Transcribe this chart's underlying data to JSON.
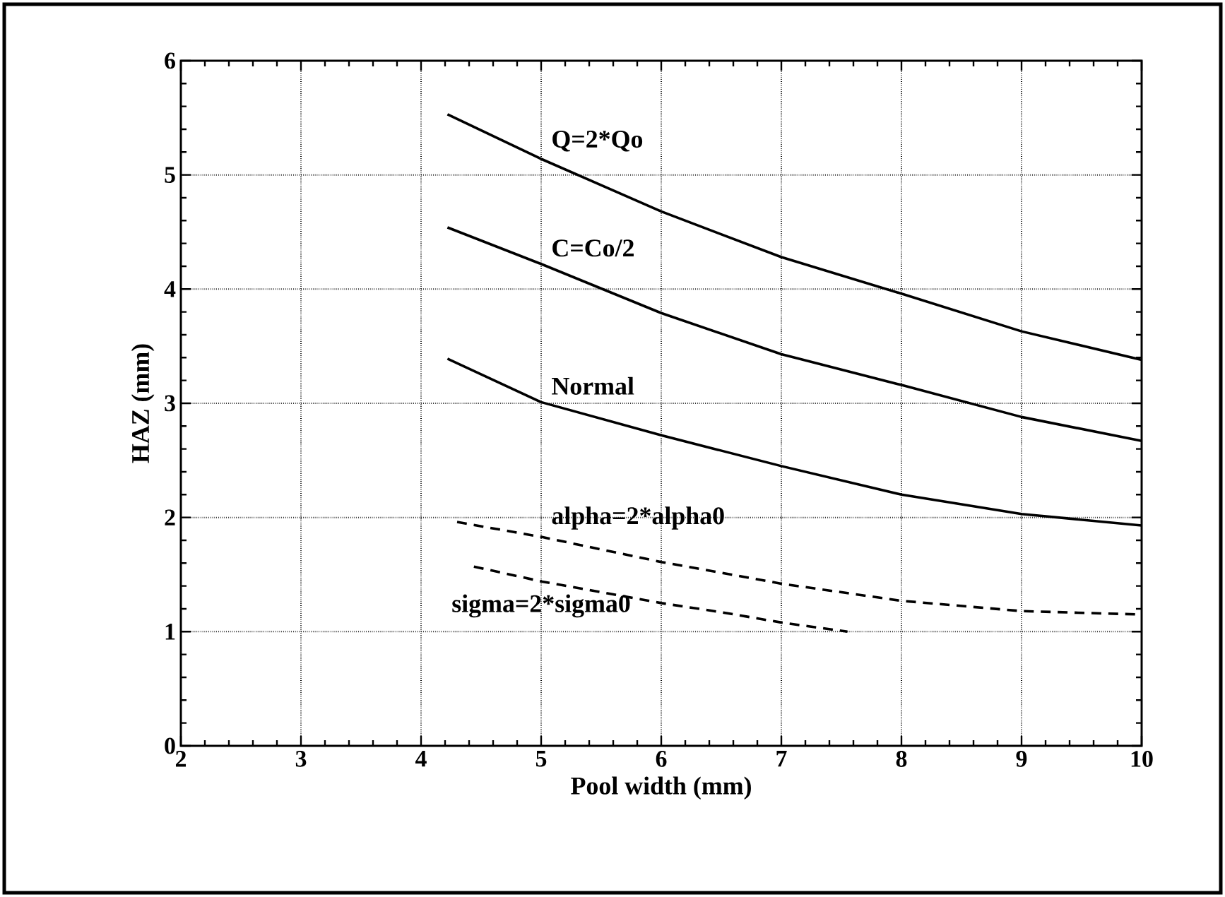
{
  "chart_data": {
    "type": "line",
    "xlabel": "Pool width (mm)",
    "ylabel": "HAZ (mm)",
    "xlim": [
      2,
      10
    ],
    "ylim": [
      0,
      6
    ],
    "xticks": [
      2,
      3,
      4,
      5,
      6,
      7,
      8,
      9,
      10
    ],
    "yticks": [
      0,
      1,
      2,
      3,
      4,
      5,
      6
    ],
    "grid": true,
    "series": [
      {
        "name": "Q=2*Qo",
        "color": "#000000",
        "line_style": "solid",
        "x": [
          4.22,
          5,
          6,
          7,
          8,
          9,
          10
        ],
        "values": [
          5.53,
          5.14,
          4.68,
          4.28,
          3.96,
          3.63,
          3.38
        ]
      },
      {
        "name": "C=Co/2",
        "color": "#000000",
        "line_style": "solid",
        "x": [
          4.22,
          5,
          6,
          7,
          8,
          9,
          10
        ],
        "values": [
          4.54,
          4.22,
          3.79,
          3.43,
          3.16,
          2.88,
          2.67
        ]
      },
      {
        "name": "Normal",
        "color": "#000000",
        "line_style": "solid",
        "x": [
          4.22,
          5,
          6,
          7,
          8,
          9,
          10
        ],
        "values": [
          3.39,
          3.01,
          2.72,
          2.45,
          2.2,
          2.03,
          1.93
        ]
      },
      {
        "name": "alpha=2*alpha0",
        "color": "#000000",
        "line_style": "dashed",
        "x": [
          4.3,
          5,
          6,
          7,
          8,
          9,
          10
        ],
        "values": [
          1.96,
          1.83,
          1.61,
          1.42,
          1.27,
          1.18,
          1.15
        ]
      },
      {
        "name": "sigma=2*sigma0",
        "color": "#000000",
        "line_style": "dashed",
        "x": [
          4.44,
          5,
          6,
          6.5,
          7,
          7.55
        ],
        "values": [
          1.57,
          1.44,
          1.25,
          1.17,
          1.08,
          1.0
        ]
      }
    ]
  }
}
